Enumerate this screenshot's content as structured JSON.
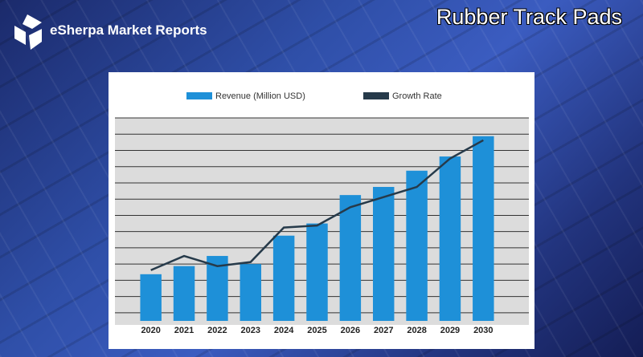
{
  "brand": "eSherpa Market Reports",
  "chart_data": {
    "type": "bar",
    "title": "Rubber Track Pads",
    "categories": [
      "2020",
      "2021",
      "2022",
      "2023",
      "2024",
      "2025",
      "2026",
      "2027",
      "2028",
      "2029",
      "2030"
    ],
    "series": [
      {
        "name": "Revenue (Million USD)",
        "type": "bar",
        "color": "#1e90d8",
        "values": [
          23,
          27,
          32,
          28,
          42,
          48,
          62,
          66,
          74,
          81,
          91
        ]
      },
      {
        "name": "Growth Rate",
        "type": "line",
        "color": "#263a4a",
        "values": [
          25,
          32,
          27,
          29,
          46,
          47,
          56,
          61,
          66,
          80,
          89
        ]
      }
    ],
    "ylim": [
      0,
      100
    ],
    "grid": true
  }
}
